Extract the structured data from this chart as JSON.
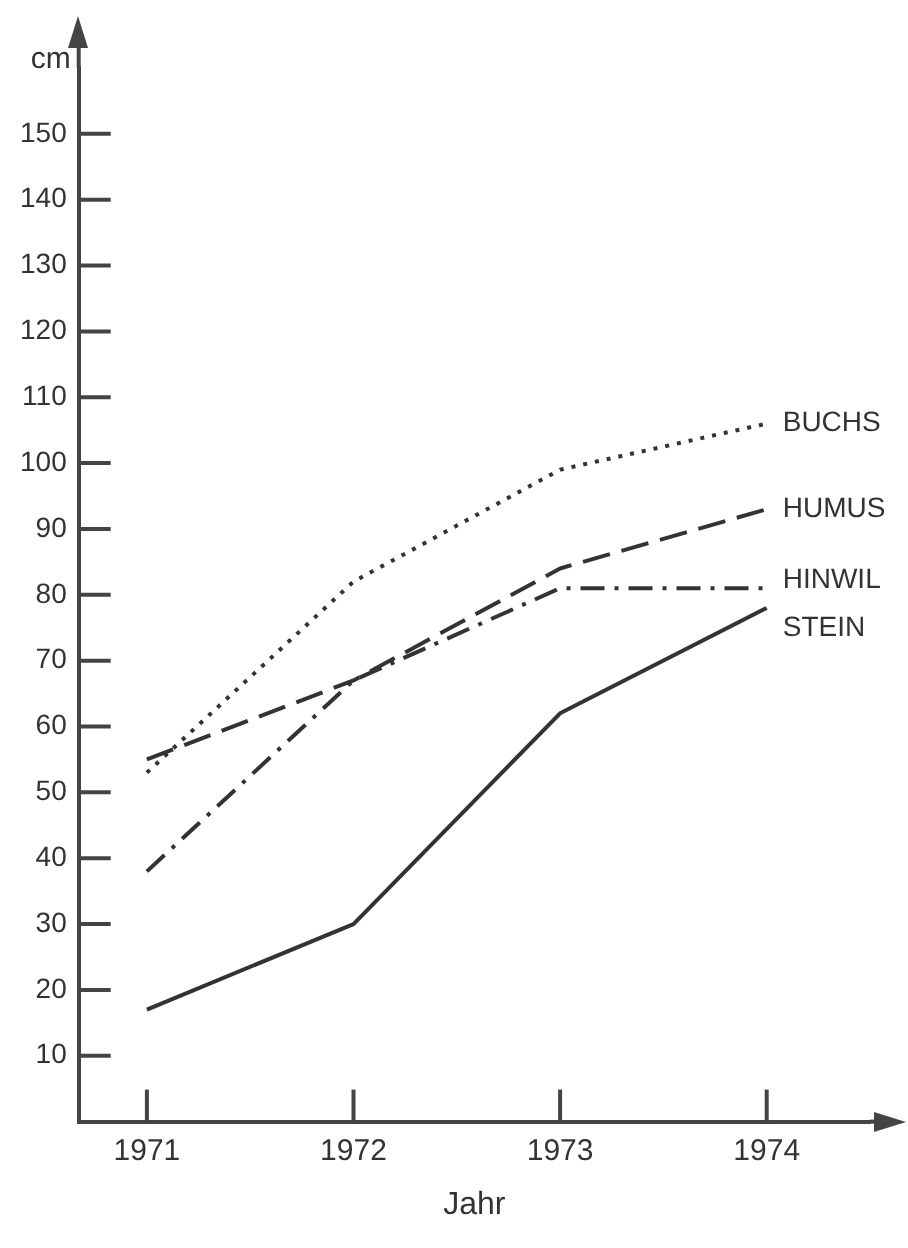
{
  "chart_data": {
    "type": "line",
    "xlabel": "Jahr",
    "ylabel": "cm",
    "x": [
      1971,
      1972,
      1973,
      1974
    ],
    "xlim": [
      1970.67,
      1974.5
    ],
    "xticks": [
      1971,
      1972,
      1973,
      1974
    ],
    "ylim": [
      0,
      160
    ],
    "yticks": [
      10,
      20,
      30,
      40,
      50,
      60,
      70,
      80,
      90,
      100,
      110,
      120,
      130,
      140,
      150
    ],
    "grid": false,
    "legend": false,
    "marker": "none",
    "series": [
      {
        "name": "BUCHS",
        "color": "#333333",
        "line_style": "dotted",
        "values": [
          53,
          82,
          99,
          106
        ]
      },
      {
        "name": "HUMUS",
        "color": "#333333",
        "line_style": "dashed",
        "values": [
          55,
          67,
          84,
          93
        ]
      },
      {
        "name": "HINWIL",
        "color": "#333333",
        "line_style": "dashdot",
        "values": [
          38,
          67,
          81,
          81
        ]
      },
      {
        "name": "STEIN",
        "color": "#333333",
        "line_style": "solid",
        "values": [
          17,
          30,
          62,
          78
        ]
      }
    ]
  }
}
